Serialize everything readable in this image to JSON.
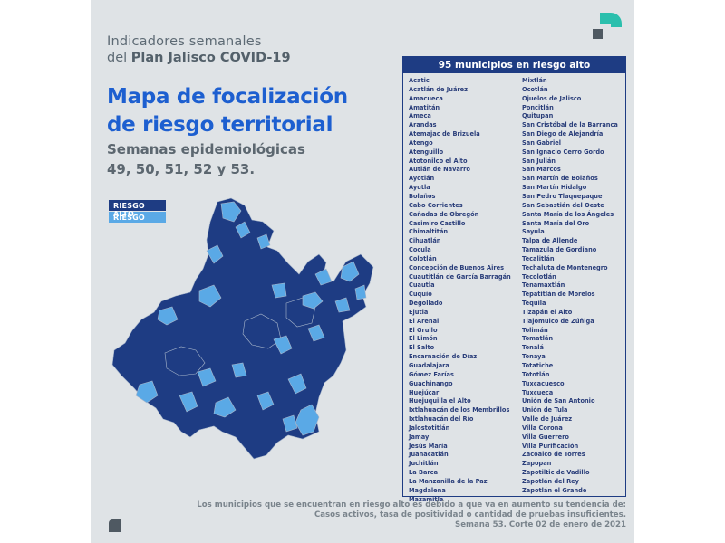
{
  "header": {
    "line1": "Indicadores semanales",
    "line2_prefix": "del ",
    "line2_strong": "Plan Jalisco COVID-19"
  },
  "title": {
    "line1": "Mapa de focalización",
    "line2": "de riesgo territorial"
  },
  "subtitle": {
    "line1": "Semanas epidemiológicas",
    "line2": "49, 50, 51, 52 y 53."
  },
  "legend": {
    "high_label": "RIESGO ALTO",
    "risk_label": "RIESGO",
    "high_color": "#1e3c83",
    "risk_color": "#5aa9e6"
  },
  "panel": {
    "title": "95 municipios en riesgo alto",
    "left_column": [
      "Acatic",
      "Acatlán de Juárez",
      "Amacueca",
      "Amatitán",
      "Ameca",
      "Arandas",
      "Atemajac de Brizuela",
      "Atengo",
      "Atenguillo",
      "Atotonilco el Alto",
      "Autlán de Navarro",
      "Ayotlán",
      "Ayutla",
      "Bolaños",
      "Cabo Corrientes",
      "Cañadas de Obregón",
      "Casimiro Castillo",
      "Chimaltitán",
      "Cihuatlán",
      "Cocula",
      "Colotlán",
      "Concepción de Buenos Aires",
      "Cuautitlán de García Barragán",
      "Cuautla",
      "Cuquío",
      "Degollado",
      "Ejutla",
      "El Arenal",
      "El Grullo",
      "El Limón",
      "El Salto",
      "Encarnación de Díaz",
      "Guadalajara",
      "Gómez Farías",
      "Guachinango",
      "Huejúcar",
      "Huejuquilla el Alto",
      "Ixtlahuacán de los Membrillos",
      "Ixtlahuacán del Río",
      "Jalostotitlán",
      "Jamay",
      "Jesús María",
      "Juanacatlán",
      "Juchitlán",
      "La Barca",
      "La Manzanilla de la Paz",
      "Magdalena",
      "Mazamitla"
    ],
    "right_column": [
      "Mixtlán",
      "Ocotlán",
      "Ojuelos de Jalisco",
      "Poncitlán",
      "Quitupan",
      "San Cristóbal de la Barranca",
      "San Diego de Alejandría",
      "San Gabriel",
      "San Ignacio Cerro Gordo",
      "San Julián",
      "San Marcos",
      "San Martín de Bolaños",
      "San Martín Hidalgo",
      "San Pedro Tlaquepaque",
      "San Sebastián del Oeste",
      "Santa María de los Ángeles",
      "Santa María del Oro",
      "Sayula",
      "Talpa de Allende",
      "Tamazula de Gordiano",
      "Tecalitlán",
      "Techaluta de Montenegro",
      "Tecolotlán",
      "Tenamaxtlán",
      "Tepatitlán de Morelos",
      "Tequila",
      "Tizapán el Alto",
      "Tlajomulco de Zúñiga",
      "Tolimán",
      "Tomatlán",
      "Tonalá",
      "Tonaya",
      "Totatiche",
      "Tototlán",
      "Tuxcacuesco",
      "Tuxcueca",
      "Unión de San Antonio",
      "Unión de Tula",
      "Valle de Juárez",
      "Villa Corona",
      "Villa Guerrero",
      "Villa Purificación",
      "Zacoalco de Torres",
      "Zapopan",
      "Zapotiltic de Vadillo",
      "Zapotlán del Rey",
      "Zapotlán el Grande"
    ]
  },
  "footer": {
    "line1": "Los municipios que se encuentran en riesgo alto es debido a que va en aumento su tendencia de:",
    "line2": "Casos activos, tasa de positividad o cantidad de pruebas insuficientes.",
    "line3": "Semana 53. Corte 02 de enero de 2021"
  },
  "colors": {
    "background": "#dfe3e6",
    "title_blue": "#1d5fd0",
    "navy": "#1e3c83",
    "light_blue": "#5aa9e6",
    "teal": "#2bbfad"
  }
}
